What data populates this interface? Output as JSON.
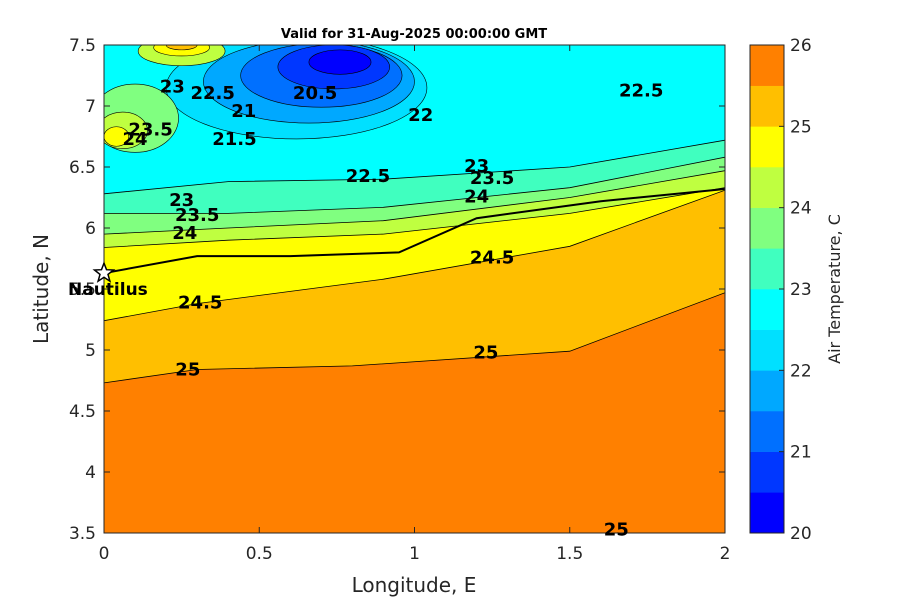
{
  "chart_data": {
    "type": "contour",
    "title": "Valid for 31-Aug-2025 00:00:00 GMT",
    "xlabel": "Longitude, E",
    "ylabel": "Latitude, N",
    "xlim": [
      0,
      2
    ],
    "ylim": [
      3.5,
      7.5
    ],
    "x_ticks": [
      "0",
      "0.5",
      "1",
      "1.5",
      "2"
    ],
    "y_ticks": [
      "3.5",
      "4",
      "4.5",
      "5",
      "5.5",
      "6",
      "6.5",
      "7",
      "7.5"
    ],
    "colorbar": {
      "label": "Air Temperature, C",
      "range": [
        20,
        26
      ],
      "step": 0.5,
      "ticks": [
        "20",
        "21",
        "22",
        "23",
        "24",
        "25",
        "26"
      ],
      "colors": [
        "#0000ff",
        "#0037ff",
        "#0070ff",
        "#00a8ff",
        "#00e0ff",
        "#00ffff",
        "#40ffbf",
        "#80ff80",
        "#bfff40",
        "#ffff00",
        "#ffbf00",
        "#ff8000"
      ]
    },
    "levels": [
      {
        "level": 25,
        "label": "25",
        "fill": "#ff8000",
        "points": [
          [
            0,
            4.73
          ],
          [
            0.3,
            4.84
          ],
          [
            0.8,
            4.87
          ],
          [
            1.5,
            4.99
          ],
          [
            2,
            5.47
          ]
        ]
      },
      {
        "level": 24.5,
        "label": "24.5",
        "fill": "#ffbf00",
        "points": [
          [
            0,
            5.24
          ],
          [
            0.3,
            5.38
          ],
          [
            0.9,
            5.58
          ],
          [
            1.5,
            5.85
          ],
          [
            2,
            6.31
          ]
        ]
      },
      {
        "level": 24,
        "label": "24",
        "fill": "#ffff00",
        "points": [
          [
            0,
            5.84
          ],
          [
            0.4,
            5.9
          ],
          [
            0.9,
            5.95
          ],
          [
            1.5,
            6.12
          ],
          [
            2,
            6.33
          ]
        ]
      },
      {
        "level": 23.5,
        "label": "23.5",
        "fill": "#bfff40",
        "points": [
          [
            0,
            5.95
          ],
          [
            0.4,
            6.0
          ],
          [
            0.9,
            6.06
          ],
          [
            1.5,
            6.25
          ],
          [
            2,
            6.47
          ]
        ]
      },
      {
        "level": 23,
        "label": "23",
        "fill": "#80ff80",
        "points": [
          [
            0,
            6.12
          ],
          [
            0.4,
            6.12
          ],
          [
            0.9,
            6.17
          ],
          [
            1.5,
            6.33
          ],
          [
            2,
            6.58
          ]
        ]
      },
      {
        "level": 22.5,
        "label": "22.5",
        "fill": "#40ffbf",
        "points": [
          [
            0,
            6.28
          ],
          [
            0.4,
            6.38
          ],
          [
            0.9,
            6.4
          ],
          [
            1.5,
            6.5
          ],
          [
            2,
            6.72
          ]
        ]
      },
      {
        "level": 22,
        "label": "22",
        "fill": "#00ffff",
        "points": [
          [
            0,
            7.5
          ],
          [
            2,
            7.5
          ]
        ]
      }
    ],
    "max_lines_label": [
      {
        "text": "25",
        "x": 1.65,
        "y": 3.52
      }
    ],
    "northwest_labels": [
      {
        "text": "23",
        "x": 0.22,
        "y": 7.15
      },
      {
        "text": "23.5",
        "x": 0.15,
        "y": 6.8
      },
      {
        "text": "24",
        "x": 0.1,
        "y": 6.72
      },
      {
        "text": "22.5",
        "x": 0.35,
        "y": 7.1
      },
      {
        "text": "21",
        "x": 0.45,
        "y": 6.95
      },
      {
        "text": "21.5",
        "x": 0.42,
        "y": 6.72
      },
      {
        "text": "20.5",
        "x": 0.68,
        "y": 7.1
      }
    ],
    "front_line": [
      [
        0,
        5.63
      ],
      [
        0.3,
        5.77
      ],
      [
        0.6,
        5.77
      ],
      [
        0.95,
        5.8
      ],
      [
        1.2,
        6.08
      ],
      [
        1.6,
        6.22
      ],
      [
        2,
        6.32
      ]
    ],
    "marker": {
      "name": "Nautilus",
      "lon": 0.0,
      "lat": 5.63
    }
  }
}
